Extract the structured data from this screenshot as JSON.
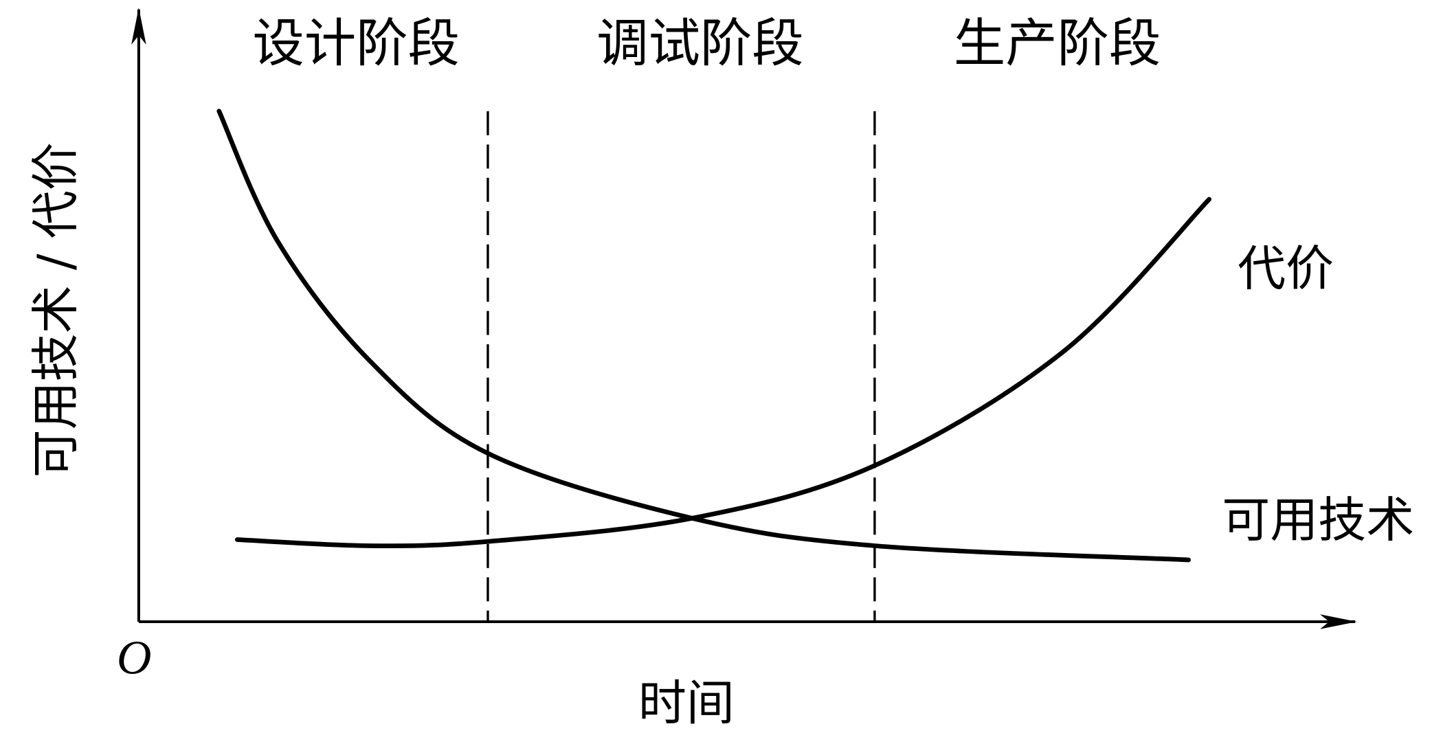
{
  "chart_data": {
    "type": "line",
    "title": "",
    "xlabel": "时间",
    "ylabel": "可用技术 / 代价",
    "origin_label": "O",
    "xlim": [
      0,
      10
    ],
    "ylim": [
      0,
      10
    ],
    "grid": false,
    "ticks": false,
    "phases": [
      "设计阶段",
      "调试阶段",
      "生产阶段"
    ],
    "phase_boundaries": [
      2.87,
      6.05
    ],
    "series": [
      {
        "name": "可用技术",
        "x": [
          0.66,
          1.14,
          1.9,
          2.87,
          4.55,
          6.05,
          8.63
        ],
        "y": [
          8.34,
          6.22,
          4.26,
          2.75,
          1.69,
          1.24,
          1.01
        ]
      },
      {
        "name": "代价",
        "x": [
          0.81,
          1.9,
          2.87,
          4.55,
          6.05,
          7.6,
          8.8
        ],
        "y": [
          1.34,
          1.24,
          1.31,
          1.69,
          2.55,
          4.41,
          6.9
        ]
      }
    ],
    "line_color": "#000000"
  }
}
